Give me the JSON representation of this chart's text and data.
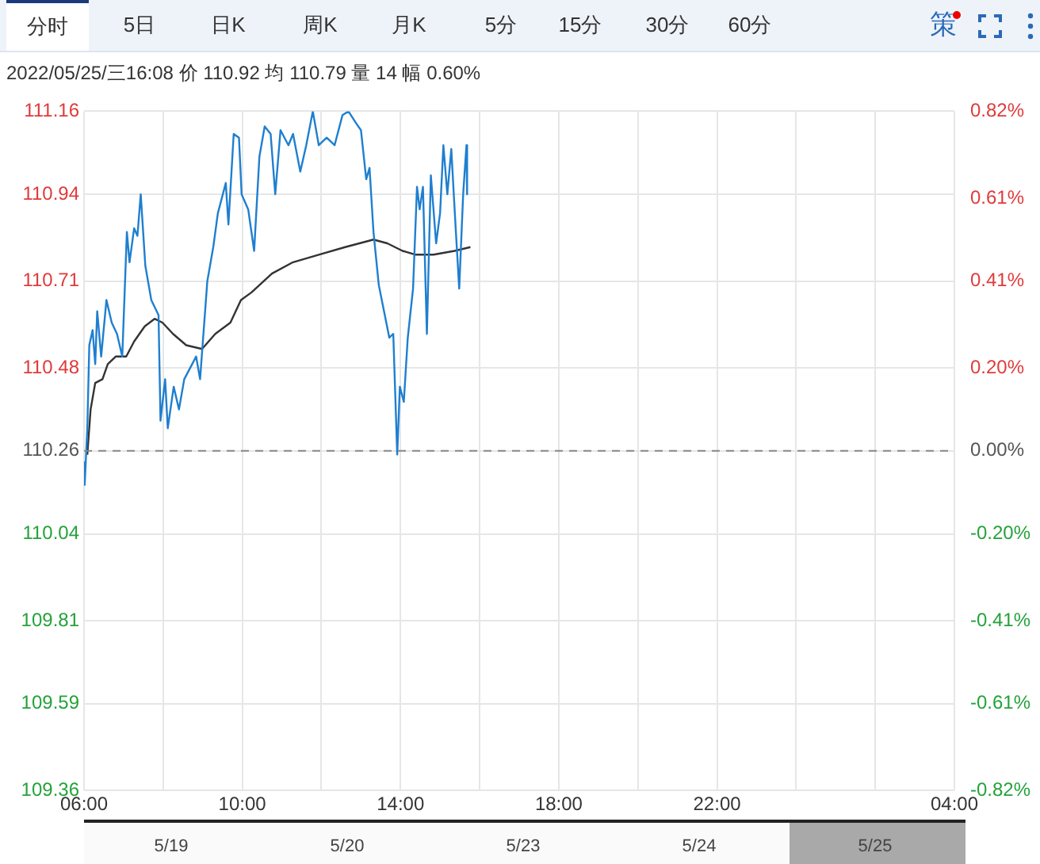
{
  "chart_data": {
    "type": "line",
    "subtitle": "2022/05/25/三16:08 价 110.92 均 110.79 量 14 幅 0.60%",
    "annotations": [
      "分时",
      "5日",
      "日K",
      "周K",
      "月K",
      "5分",
      "15分",
      "30分",
      "60分",
      "策",
      "5/19",
      "5/20",
      "5/23",
      "5/24",
      "5/25"
    ],
    "series": [
      {
        "color": "#1f7fcf",
        "x": [
          "2022-05-25T06:00",
          "2022-05-25T06:01",
          "2022-05-25T06:05",
          "2022-05-25T06:08",
          "2022-05-25T06:13",
          "2022-05-25T06:17",
          "2022-05-25T06:20",
          "2022-05-25T06:26",
          "2022-05-25T06:34",
          "2022-05-25T06:42",
          "2022-05-25T06:50",
          "2022-05-25T06:58",
          "2022-05-25T07:05",
          "2022-05-25T07:09",
          "2022-05-25T07:16",
          "2022-05-25T07:21",
          "2022-05-25T07:26",
          "2022-05-25T07:33",
          "2022-05-25T07:42",
          "2022-05-25T07:53",
          "2022-05-25T07:56",
          "2022-05-25T08:03",
          "2022-05-25T08:07",
          "2022-05-25T08:16",
          "2022-05-25T08:24",
          "2022-05-25T08:32",
          "2022-05-25T08:44",
          "2022-05-25T08:50",
          "2022-05-25T08:56",
          "2022-05-25T09:07",
          "2022-05-25T09:16",
          "2022-05-25T09:23",
          "2022-05-25T09:35",
          "2022-05-25T09:39",
          "2022-05-25T09:47",
          "2022-05-25T09:55",
          "2022-05-25T09:59",
          "2022-05-25T10:09",
          "2022-05-25T10:18",
          "2022-05-25T10:26",
          "2022-05-25T10:34",
          "2022-05-25T10:43",
          "2022-05-25T10:50",
          "2022-05-25T10:58",
          "2022-05-25T11:10",
          "2022-05-25T11:17",
          "2022-05-25T11:28",
          "2022-05-25T11:37",
          "2022-05-25T11:47",
          "2022-05-25T11:56",
          "2022-05-25T12:08",
          "2022-05-25T12:20",
          "2022-05-25T12:32",
          "2022-05-25T12:41",
          "2022-05-25T12:52",
          "2022-05-25T13:00",
          "2022-05-25T13:08",
          "2022-05-25T13:13",
          "2022-05-25T13:19",
          "2022-05-25T13:27",
          "2022-05-25T13:35",
          "2022-05-25T13:43",
          "2022-05-25T13:49",
          "2022-05-25T13:55",
          "2022-05-25T13:59",
          "2022-05-25T14:05",
          "2022-05-25T14:11",
          "2022-05-25T14:19",
          "2022-05-25T14:25",
          "2022-05-25T14:29",
          "2022-05-25T14:34",
          "2022-05-25T14:40",
          "2022-05-25T14:46",
          "2022-05-25T14:54",
          "2022-05-25T15:00",
          "2022-05-25T15:05",
          "2022-05-25T15:11",
          "2022-05-25T15:17",
          "2022-05-25T15:23",
          "2022-05-25T15:29",
          "2022-05-25T15:35",
          "2022-05-25T15:40",
          "2022-05-25T15:41"
        ],
        "values": [
          110.23,
          110.17,
          110.32,
          110.54,
          110.58,
          110.49,
          110.63,
          110.51,
          110.66,
          110.6,
          110.57,
          110.51,
          110.84,
          110.76,
          110.85,
          110.83,
          110.94,
          110.75,
          110.66,
          110.62,
          110.34,
          110.45,
          110.32,
          110.43,
          110.37,
          110.45,
          110.49,
          110.51,
          110.45,
          110.71,
          110.8,
          110.89,
          110.97,
          110.86,
          111.1,
          111.09,
          110.94,
          110.9,
          110.79,
          111.04,
          111.12,
          111.1,
          110.94,
          111.11,
          111.07,
          111.1,
          111.0,
          111.07,
          111.16,
          111.07,
          111.09,
          111.07,
          111.15,
          111.16,
          111.13,
          111.11,
          110.98,
          111.01,
          110.84,
          110.7,
          110.63,
          110.56,
          110.57,
          110.25,
          110.43,
          110.39,
          110.56,
          110.69,
          110.96,
          110.9,
          110.96,
          110.57,
          110.99,
          110.81,
          110.89,
          111.07,
          110.94,
          111.06,
          110.87,
          110.69,
          110.94,
          111.07,
          110.94
        ]
      },
      {
        "color": "#333333",
        "x": [
          "2022-05-25T06:05",
          "2022-05-25T06:10",
          "2022-05-25T06:17",
          "2022-05-25T06:28",
          "2022-05-25T06:36",
          "2022-05-25T06:48",
          "2022-05-25T07:04",
          "2022-05-25T07:16",
          "2022-05-25T07:32",
          "2022-05-25T07:47",
          "2022-05-25T07:59",
          "2022-05-25T08:15",
          "2022-05-25T08:35",
          "2022-05-25T08:59",
          "2022-05-25T09:19",
          "2022-05-25T09:42",
          "2022-05-25T09:58",
          "2022-05-25T10:14",
          "2022-05-25T10:45",
          "2022-05-25T11:17",
          "2022-05-25T11:56",
          "2022-05-25T12:36",
          "2022-05-25T13:19",
          "2022-05-25T13:40",
          "2022-05-25T14:03",
          "2022-05-25T14:23",
          "2022-05-25T14:50",
          "2022-05-25T15:22",
          "2022-05-25T15:46"
        ],
        "values": [
          110.25,
          110.37,
          110.44,
          110.45,
          110.49,
          110.51,
          110.51,
          110.55,
          110.59,
          110.61,
          110.6,
          110.57,
          110.54,
          110.53,
          110.57,
          110.6,
          110.66,
          110.68,
          110.73,
          110.76,
          110.78,
          110.8,
          110.82,
          110.81,
          110.79,
          110.78,
          110.78,
          110.79,
          110.8
        ]
      }
    ],
    "xlim": [
      "2022-05-25T06:00",
      "2022-05-26T04:00"
    ],
    "xticks": [
      {
        "value": "2022-05-25T06:00",
        "label": "06:00"
      },
      {
        "value": "2022-05-25T08:00",
        "label": null
      },
      {
        "value": "2022-05-25T10:00",
        "label": "10:00"
      },
      {
        "value": "2022-05-25T12:00",
        "label": null
      },
      {
        "value": "2022-05-25T14:00",
        "label": "14:00"
      },
      {
        "value": "2022-05-25T16:00",
        "label": null
      },
      {
        "value": "2022-05-25T18:00",
        "label": "18:00"
      },
      {
        "value": "2022-05-25T20:00",
        "label": null
      },
      {
        "value": "2022-05-25T22:00",
        "label": "22:00"
      },
      {
        "value": "2022-05-26T00:00",
        "label": null
      },
      {
        "value": "2022-05-26T02:00",
        "label": null
      },
      {
        "value": "2022-05-26T04:00",
        "label": "04:00"
      }
    ],
    "ylim": [
      109.36,
      111.16
    ],
    "yticks": [
      109.36,
      109.59,
      109.81,
      110.04,
      110.26,
      110.48,
      110.71,
      110.94,
      111.16
    ],
    "y2lim": [
      -0.82,
      0.82
    ],
    "y2ticks": [
      {
        "value": -0.82,
        "label": "-0.82%"
      },
      {
        "value": -0.61,
        "label": "-0.61%"
      },
      {
        "value": -0.41,
        "label": "-0.41%"
      },
      {
        "value": -0.2,
        "label": "-0.20%"
      },
      {
        "value": 0,
        "label": "0.00%"
      },
      {
        "value": 0.2,
        "label": "0.20%"
      },
      {
        "value": 0.41,
        "label": "0.41%"
      },
      {
        "value": 0.61,
        "label": "0.61%"
      },
      {
        "value": 0.82,
        "label": "0.82%"
      }
    ],
    "ref_lines": [
      {
        "axis": "y",
        "value": 110.26,
        "color": "#888888",
        "line_style": "dashed"
      }
    ],
    "grid": true,
    "legend": false,
    "marker": "none",
    "line_style": "solid"
  }
}
